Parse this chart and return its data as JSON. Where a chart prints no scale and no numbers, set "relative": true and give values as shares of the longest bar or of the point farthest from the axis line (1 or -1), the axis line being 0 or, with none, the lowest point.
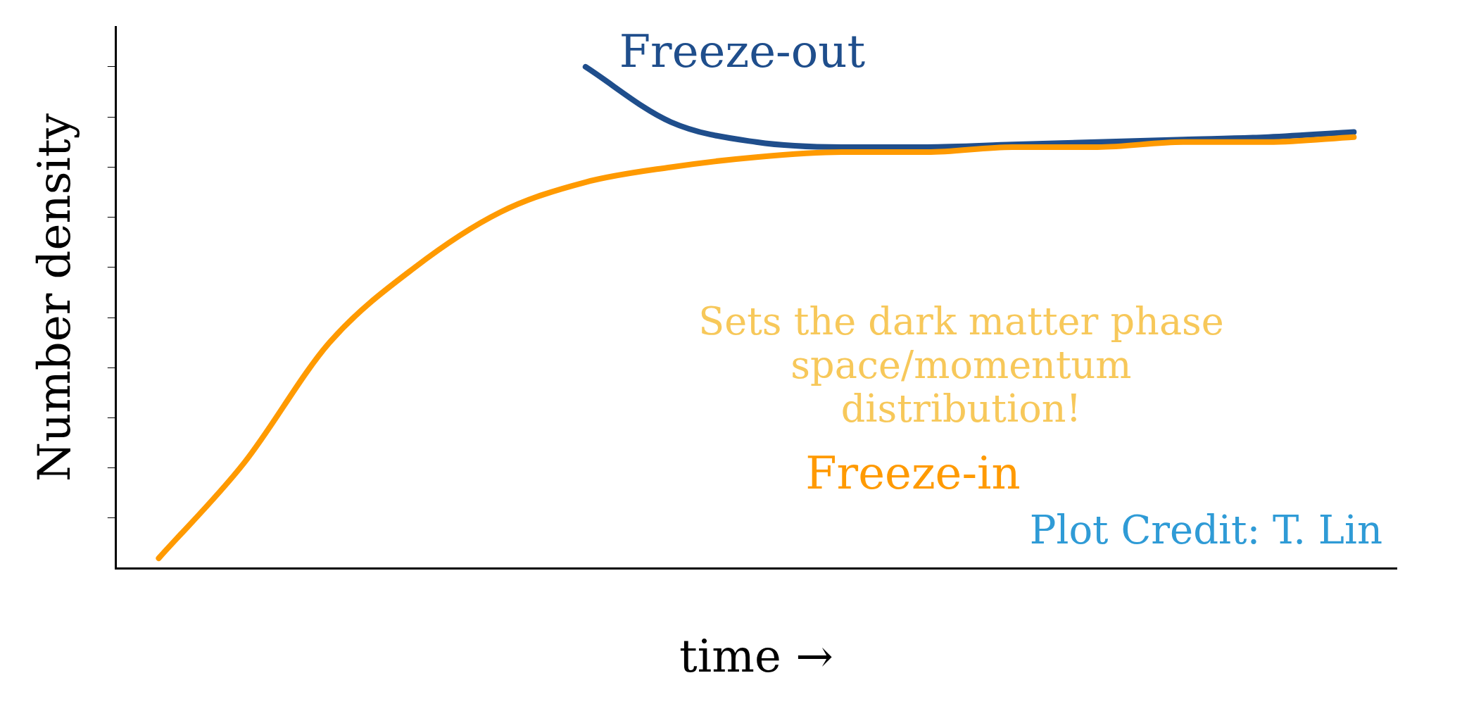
{
  "chart_data": {
    "type": "line",
    "relative": true,
    "xlabel": "time →",
    "ylabel": "Number density",
    "categories": [
      null,
      null,
      null,
      null,
      null,
      null,
      null,
      null,
      null,
      null,
      null,
      null,
      null,
      null,
      null
    ],
    "series": [
      {
        "name": "Freeze-in",
        "color": "#ff9a00",
        "values": [
          0.02,
          0.21,
          0.45,
          0.6,
          0.71,
          0.77,
          0.8,
          0.82,
          0.83,
          0.83,
          0.84,
          0.84,
          0.85,
          0.85,
          0.86
        ]
      },
      {
        "name": "Freeze-out",
        "color": "#1f4e8c",
        "values": [
          null,
          null,
          null,
          null,
          null,
          1.0,
          0.89,
          0.85,
          0.84,
          0.84,
          0.845,
          0.85,
          0.855,
          0.86,
          0.87
        ]
      }
    ],
    "annotations": [
      "Sets the dark matter phase space/momentum distribution!",
      "Plot Credit: T. Lin"
    ],
    "grid": false,
    "legend": false,
    "marker": "none",
    "line_style": "solid"
  }
}
